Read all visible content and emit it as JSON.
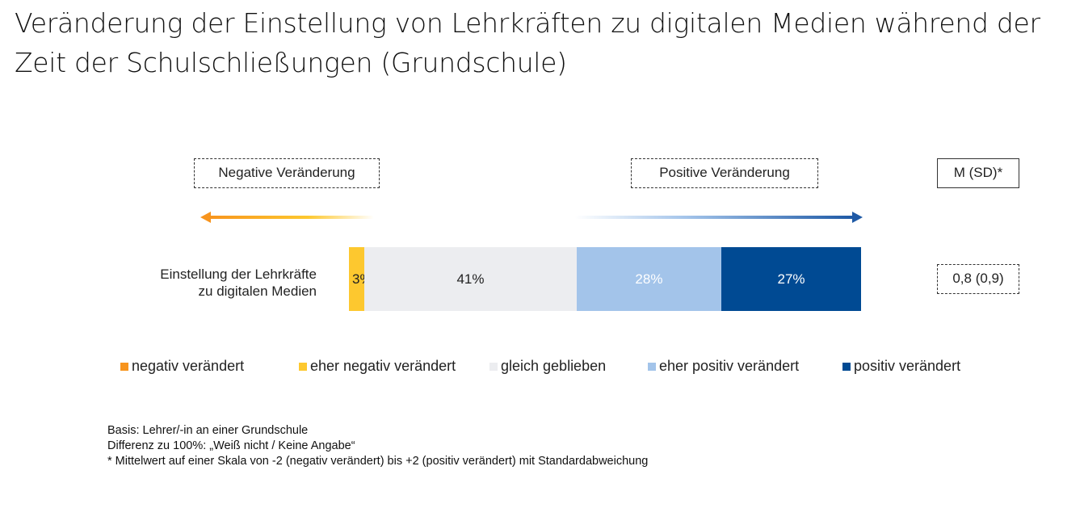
{
  "title": "Veränderung der Einstellung von Lehrkräften zu digitalen Medien während der Zeit der Schulschließungen (Grundschule)",
  "header_boxes": {
    "negative": "Negative Veränderung",
    "positive": "Positive Veränderung",
    "mean_sd": "M (SD)*"
  },
  "colors": {
    "negativ": "#f7941d",
    "eher_negativ": "#fdc82f",
    "gleich": "#ecedf0",
    "eher_positiv": "#a3c4ea",
    "positiv": "#004a93",
    "arrow_negative": "#f7941d",
    "arrow_positive": "#1f5aa6"
  },
  "chart_data": {
    "type": "bar",
    "orientation": "horizontal-stacked",
    "title": "Veränderung der Einstellung von Lehrkräften zu digitalen Medien während der Zeit der Schulschließungen (Grundschule)",
    "categories": [
      "Einstellung der Lehrkräfte zu digitalen Medien"
    ],
    "category_label_lines": [
      "Einstellung  der Lehrkräfte",
      "zu digitalen  Medien"
    ],
    "series": [
      {
        "name": "negativ verändert",
        "values": [
          0
        ],
        "label": ""
      },
      {
        "name": "eher negativ verändert",
        "values": [
          3
        ],
        "label": "3%"
      },
      {
        "name": "gleich geblieben",
        "values": [
          41
        ],
        "label": "41%"
      },
      {
        "name": "eher positiv verändert",
        "values": [
          28
        ],
        "label": "28%"
      },
      {
        "name": "positiv verändert",
        "values": [
          27
        ],
        "label": "27%"
      }
    ],
    "unit": "%",
    "xlim": [
      0,
      100
    ],
    "legend_position": "bottom",
    "mean_sd_value": "0,8 (0,9)",
    "xlabel": "",
    "ylabel": ""
  },
  "legend": [
    {
      "label": "negativ verändert"
    },
    {
      "label": "eher negativ verändert"
    },
    {
      "label": "gleich geblieben"
    },
    {
      "label": "eher positiv verändert"
    },
    {
      "label": "positiv verändert"
    }
  ],
  "notes": [
    "Basis: Lehrer/-in an einer Grundschule",
    "Differenz zu 100%: „Weiß nicht / Keine Angabe“",
    "* Mittelwert auf einer Skala von -2 (negativ verändert) bis +2 (positiv verändert) mit Standardabweichung"
  ]
}
